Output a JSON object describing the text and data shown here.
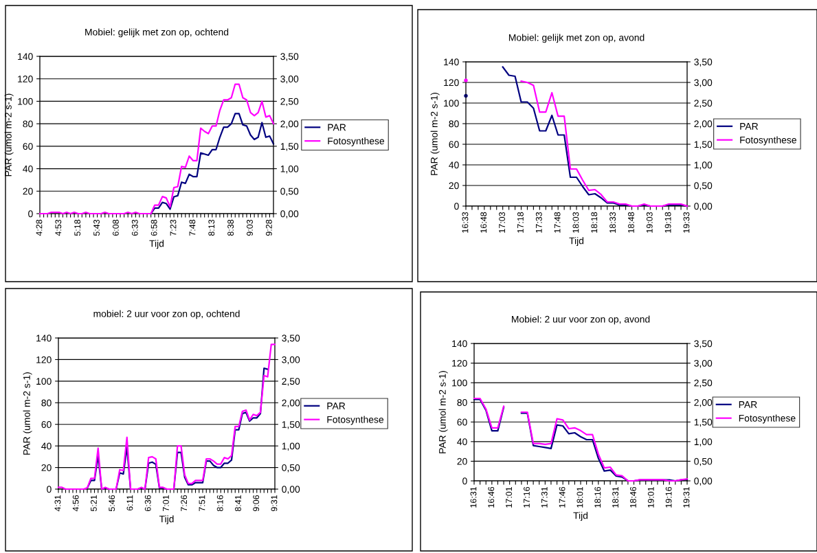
{
  "chart_data": [
    {
      "type": "line",
      "title": "Mobiel: gelijk met zon op, ochtend",
      "xlabel": "Tijd",
      "ylabel": "PAR (umol m-2 s-1)",
      "grid": "y",
      "legend": "right",
      "marker": "none",
      "line_style": "solid",
      "categories": [
        "4:28",
        null,
        null,
        null,
        null,
        "4:53",
        null,
        null,
        null,
        null,
        "5:18",
        null,
        null,
        null,
        null,
        "5:43",
        null,
        null,
        null,
        null,
        "6:08",
        null,
        null,
        null,
        null,
        "6:33",
        null,
        null,
        null,
        null,
        "6:58",
        null,
        null,
        null,
        null,
        "7:23",
        null,
        null,
        null,
        null,
        "7:48",
        null,
        null,
        null,
        null,
        "8:13",
        null,
        null,
        null,
        null,
        "8:38",
        null,
        null,
        null,
        null,
        "9:03",
        null,
        null,
        null,
        null,
        "9:28",
        null
      ],
      "ylim": [
        0,
        140
      ],
      "yticks": [
        0,
        20,
        40,
        60,
        80,
        100,
        120,
        140
      ],
      "y2lim": [
        0,
        3.5
      ],
      "y2ticks": [
        {
          "value": 0,
          "label": "0,00"
        },
        {
          "value": 0.5,
          "label": "0,50"
        },
        {
          "value": 1,
          "label": "1,00"
        },
        {
          "value": 1.5,
          "label": "1,50"
        },
        {
          "value": 2,
          "label": "2,00"
        },
        {
          "value": 2.5,
          "label": "2,50"
        },
        {
          "value": 3,
          "label": "3,00"
        },
        {
          "value": 3.5,
          "label": "3,50"
        }
      ],
      "series": [
        {
          "name": "PAR",
          "color": "#000080",
          "values": [
            null,
            null,
            null,
            null,
            null,
            null,
            null,
            null,
            null,
            null,
            null,
            null,
            null,
            null,
            null,
            null,
            null,
            null,
            null,
            null,
            null,
            null,
            null,
            null,
            null,
            null,
            null,
            null,
            null,
            0,
            5,
            5,
            10,
            9,
            4,
            15,
            16,
            28,
            27,
            35,
            33,
            33,
            54,
            53,
            52,
            57,
            57,
            68,
            77,
            77,
            80,
            89,
            89,
            79,
            78,
            70,
            66,
            68,
            81,
            68,
            69,
            62
          ]
        },
        {
          "name": "Fotosynthese",
          "color": "#ff00ff",
          "axis": "y2",
          "values": [
            0,
            0,
            0,
            0.03,
            0.03,
            0.03,
            0,
            0.03,
            0,
            0.03,
            0,
            0,
            0.03,
            0,
            0,
            0,
            0,
            0.03,
            0,
            0,
            0,
            0,
            0,
            0.03,
            0,
            0.03,
            0,
            0,
            0,
            0,
            0.19,
            0.19,
            0.38,
            0.35,
            0.15,
            0.58,
            0.6,
            1.05,
            1.03,
            1.28,
            1.18,
            1.18,
            1.9,
            1.83,
            1.78,
            1.95,
            1.95,
            2.3,
            2.53,
            2.53,
            2.58,
            2.88,
            2.88,
            2.58,
            2.53,
            2.25,
            2.18,
            2.25,
            2.5,
            2.15,
            2.18,
            2.0
          ]
        }
      ]
    },
    {
      "type": "line",
      "title": "Mobiel: gelijk met zon op, avond",
      "xlabel": "Tijd",
      "ylabel": "PAR (umol m-2 s-1)",
      "grid": "y",
      "legend": "right",
      "marker": "none",
      "line_style": "solid",
      "categories": [
        "16:33",
        null,
        null,
        "16:48",
        null,
        null,
        "17:03",
        null,
        null,
        "17:18",
        null,
        null,
        "17:33",
        null,
        null,
        "17:48",
        null,
        null,
        "18:03",
        null,
        null,
        "18:18",
        null,
        null,
        "18:33",
        null,
        null,
        "18:48",
        null,
        null,
        "19:03",
        null,
        null,
        "19:18",
        null,
        null,
        "19:33"
      ],
      "ylim": [
        0,
        140
      ],
      "yticks": [
        0,
        20,
        40,
        60,
        80,
        100,
        120,
        140
      ],
      "y2lim": [
        0,
        3.5
      ],
      "y2ticks": [
        {
          "value": 0,
          "label": "0,00"
        },
        {
          "value": 0.5,
          "label": "0,50"
        },
        {
          "value": 1,
          "label": "1,00"
        },
        {
          "value": 1.5,
          "label": "1,50"
        },
        {
          "value": 2,
          "label": "2,00"
        },
        {
          "value": 2.5,
          "label": "2,50"
        },
        {
          "value": 3,
          "label": "3,00"
        },
        {
          "value": 3.5,
          "label": "3,50"
        }
      ],
      "series": [
        {
          "name": "PAR",
          "color": "#000080",
          "values": [
            107,
            null,
            null,
            null,
            null,
            null,
            135,
            127,
            126,
            101,
            101,
            95,
            73,
            73,
            88,
            69,
            69,
            28,
            28,
            19,
            11,
            12,
            8,
            3,
            3,
            1,
            1,
            0,
            0,
            1,
            0,
            0,
            0,
            1,
            1,
            1,
            0
          ]
        },
        {
          "name": "Fotosynthese",
          "color": "#ff00ff",
          "axis": "y2",
          "values": [
            3.05,
            null,
            null,
            null,
            null,
            null,
            null,
            null,
            null,
            3.03,
            3.0,
            2.93,
            2.28,
            2.28,
            2.75,
            2.18,
            2.18,
            0.9,
            0.9,
            0.63,
            0.38,
            0.4,
            0.28,
            0.1,
            0.1,
            0.05,
            0.05,
            0,
            0,
            0.05,
            0,
            0,
            0,
            0.05,
            0.05,
            0.05,
            0
          ]
        }
      ]
    },
    {
      "type": "line",
      "title": "mobiel: 2 uur voor zon op, ochtend",
      "xlabel": "Tijd",
      "ylabel": "PAR (umol m-2 s-1)",
      "grid": "y",
      "legend": "right",
      "marker": "none",
      "line_style": "solid",
      "categories": [
        "4:31",
        null,
        null,
        null,
        null,
        "4:56",
        null,
        null,
        null,
        null,
        "5:21",
        null,
        null,
        null,
        null,
        "5:46",
        null,
        null,
        null,
        null,
        "6:11",
        null,
        null,
        null,
        null,
        "6:36",
        null,
        null,
        null,
        null,
        "7:01",
        null,
        null,
        null,
        null,
        "7:26",
        null,
        null,
        null,
        null,
        "7:51",
        null,
        null,
        null,
        null,
        "8:16",
        null,
        null,
        null,
        null,
        "8:41",
        null,
        null,
        null,
        null,
        "9:06",
        null,
        null,
        null,
        null,
        "9:31"
      ],
      "ylim": [
        0,
        140
      ],
      "yticks": [
        0,
        20,
        40,
        60,
        80,
        100,
        120,
        140
      ],
      "y2lim": [
        0,
        3.5
      ],
      "y2ticks": [
        {
          "value": 0,
          "label": "0,00"
        },
        {
          "value": 0.5,
          "label": "0,50"
        },
        {
          "value": 1,
          "label": "1,00"
        },
        {
          "value": 1.5,
          "label": "1,50"
        },
        {
          "value": 2,
          "label": "2,00"
        },
        {
          "value": 2.5,
          "label": "2,50"
        },
        {
          "value": 3,
          "label": "3,00"
        },
        {
          "value": 3.5,
          "label": "3,50"
        }
      ],
      "series": [
        {
          "name": "PAR",
          "color": "#000080",
          "values": [
            null,
            null,
            null,
            null,
            null,
            null,
            null,
            null,
            1,
            8,
            8,
            31,
            0,
            1,
            0,
            0,
            0,
            15,
            14,
            39,
            0,
            0,
            0,
            1,
            0,
            24,
            25,
            23,
            1,
            1,
            0,
            0,
            0,
            34,
            34,
            11,
            4,
            4,
            6,
            6,
            6,
            26,
            26,
            22,
            20,
            20,
            24,
            24,
            27,
            55,
            55,
            70,
            71,
            63,
            66,
            66,
            70,
            112,
            111,
            null,
            null
          ]
        },
        {
          "name": "Fotosynthese",
          "color": "#ff00ff",
          "axis": "y2",
          "values": [
            0.04,
            0.04,
            0,
            0,
            0,
            0,
            0,
            0,
            0.03,
            0.25,
            0.25,
            0.95,
            0,
            0.04,
            0,
            0,
            0,
            0.45,
            0.43,
            1.2,
            0,
            0,
            0,
            0.04,
            0,
            0.73,
            0.75,
            0.7,
            0.04,
            0.04,
            0,
            0,
            0,
            1.0,
            1.0,
            0.33,
            0.13,
            0.13,
            0.2,
            0.2,
            0.2,
            0.7,
            0.7,
            0.65,
            0.58,
            0.58,
            0.73,
            0.7,
            0.78,
            1.45,
            1.45,
            1.8,
            1.83,
            1.6,
            1.73,
            1.7,
            1.78,
            2.63,
            2.6,
            3.35,
            3.35
          ]
        }
      ]
    },
    {
      "type": "line",
      "title": "Mobiel: 2 uur voor zon op, avond",
      "xlabel": "Tijd",
      "ylabel": "PAR (umol m-2 s-1)",
      "grid": "y",
      "legend": "right",
      "marker": "none",
      "line_style": "solid",
      "categories": [
        "16:31",
        null,
        null,
        "16:46",
        null,
        null,
        "17:01",
        null,
        null,
        "17:16",
        null,
        null,
        "17:31",
        null,
        null,
        "17:46",
        null,
        null,
        "18:01",
        null,
        null,
        "18:16",
        null,
        null,
        "18:31",
        null,
        null,
        "18:46",
        null,
        null,
        "19:01",
        null,
        null,
        "19:16",
        null,
        null,
        "19:31"
      ],
      "ylim": [
        0,
        140
      ],
      "yticks": [
        0,
        20,
        40,
        60,
        80,
        100,
        120,
        140
      ],
      "y2lim": [
        0,
        3.5
      ],
      "y2ticks": [
        {
          "value": 0,
          "label": "0,00"
        },
        {
          "value": 0.5,
          "label": "0,50"
        },
        {
          "value": 1,
          "label": "1,00"
        },
        {
          "value": 1.5,
          "label": "1,50"
        },
        {
          "value": 2,
          "label": "2,00"
        },
        {
          "value": 2.5,
          "label": "2,50"
        },
        {
          "value": 3,
          "label": "3,00"
        },
        {
          "value": 3.5,
          "label": "3,50"
        }
      ],
      "series": [
        {
          "name": "PAR",
          "color": "#000080",
          "values": [
            83,
            83,
            72,
            51,
            51,
            75,
            null,
            null,
            69,
            69,
            36,
            35,
            34,
            33,
            57,
            56,
            48,
            49,
            45,
            42,
            42,
            23,
            10,
            11,
            5,
            4,
            0,
            0,
            1,
            1,
            1,
            1,
            1,
            1,
            0,
            1,
            1.5
          ]
        },
        {
          "name": "Fotosynthese",
          "color": "#ff00ff",
          "axis": "y2",
          "values": [
            2.1,
            2.1,
            1.83,
            1.35,
            1.35,
            1.9,
            null,
            null,
            1.75,
            1.75,
            0.95,
            0.95,
            0.93,
            0.95,
            1.58,
            1.55,
            1.33,
            1.35,
            1.28,
            1.18,
            1.18,
            0.68,
            0.33,
            0.35,
            0.15,
            0.13,
            0,
            0,
            0.03,
            0.03,
            0.03,
            0.03,
            0.03,
            0,
            0,
            0.03,
            0.05
          ]
        }
      ]
    }
  ]
}
